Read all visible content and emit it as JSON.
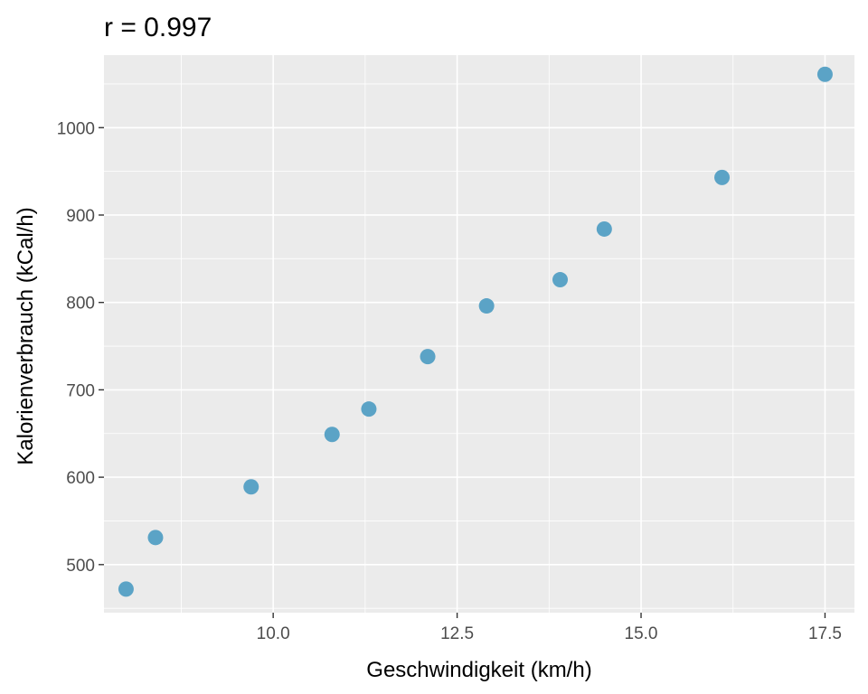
{
  "chart_data": {
    "type": "scatter",
    "title": "r = 0.997",
    "xlabel": "Geschwindigkeit (km/h)",
    "ylabel": "Kalorienverbrauch (kCal/h)",
    "xlim": [
      7.7,
      17.9
    ],
    "ylim": [
      445,
      1083
    ],
    "x_ticks": [
      10.0,
      12.5,
      15.0,
      17.5
    ],
    "x_tick_labels": [
      "10.0",
      "12.5",
      "15.0",
      "17.5"
    ],
    "x_minor_ticks": [
      8.75,
      11.25,
      13.75,
      16.25
    ],
    "y_ticks": [
      500,
      600,
      700,
      800,
      900,
      1000
    ],
    "y_tick_labels": [
      "500",
      "600",
      "700",
      "800",
      "900",
      "1000"
    ],
    "y_minor_ticks": [
      450,
      550,
      650,
      750,
      850,
      950,
      1050
    ],
    "grid": true,
    "panel_color": "#ebebeb",
    "point_color": "#5ba3c6",
    "points": [
      {
        "x": 8.0,
        "y": 472
      },
      {
        "x": 8.4,
        "y": 531
      },
      {
        "x": 9.7,
        "y": 589
      },
      {
        "x": 10.8,
        "y": 649
      },
      {
        "x": 11.3,
        "y": 678
      },
      {
        "x": 12.1,
        "y": 738
      },
      {
        "x": 12.9,
        "y": 796
      },
      {
        "x": 13.9,
        "y": 826
      },
      {
        "x": 14.5,
        "y": 884
      },
      {
        "x": 16.1,
        "y": 943
      },
      {
        "x": 17.5,
        "y": 1061
      }
    ]
  }
}
